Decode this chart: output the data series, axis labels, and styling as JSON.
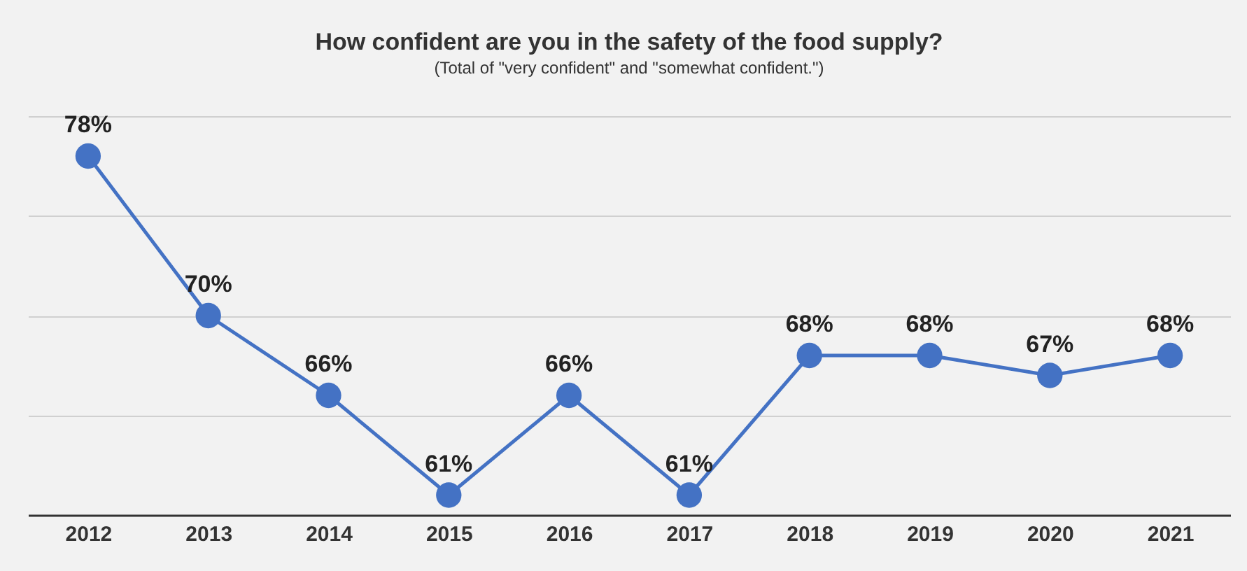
{
  "chart_data": {
    "type": "line",
    "title": "How confident are you in the safety of the food supply?",
    "subtitle": "(Total of \"very confident\" and \"somewhat confident.\")",
    "categories": [
      "2012",
      "2013",
      "2014",
      "2015",
      "2016",
      "2017",
      "2018",
      "2019",
      "2020",
      "2021"
    ],
    "series": [
      {
        "color": "#4472c4",
        "values": [
          78,
          70,
          66,
          61,
          66,
          61,
          68,
          68,
          67,
          68
        ],
        "value_labels": [
          "78%",
          "70%",
          "66%",
          "61%",
          "66%",
          "61%",
          "68%",
          "68%",
          "67%",
          "68%"
        ]
      }
    ],
    "ylim": [
      60,
      80
    ],
    "yticks": [
      60,
      65,
      70,
      75,
      80
    ],
    "grid": "y",
    "tick_labels": "x",
    "marker": "circle",
    "line_style": "solid"
  }
}
